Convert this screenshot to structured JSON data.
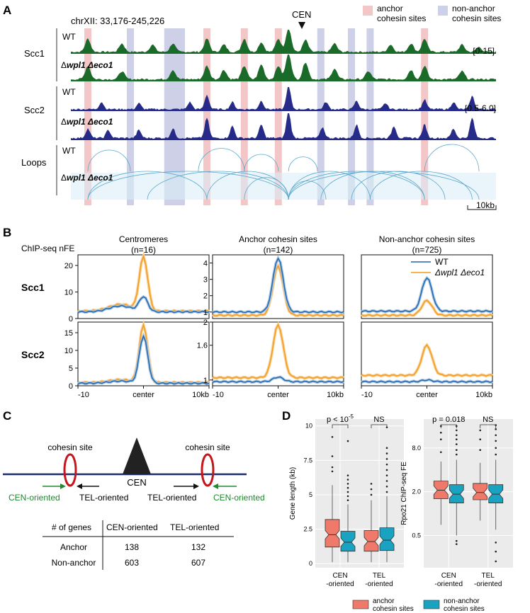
{
  "panel_letters": [
    "A",
    "B",
    "C",
    "D"
  ],
  "panel_a": {
    "locus": "chrXII: 33,176-245,226",
    "cen_label": "CEN",
    "legend_anchor": [
      "anchor",
      "cohesin sites"
    ],
    "legend_nonanchor": [
      "non-anchor",
      "cohesin sites"
    ],
    "colors": {
      "anchor_band": "#f3c6c8",
      "nonanchor_band": "#cdd0e6",
      "scc1": "#1a6b2a",
      "scc2": "#262b8a",
      "loops": "#5aa8cc",
      "loop_fill": "#dbeef6"
    },
    "groups": [
      {
        "name": "Scc1",
        "range": "[0-15]",
        "tracks": [
          {
            "label_prefix": "",
            "label": "WT"
          },
          {
            "label_prefix": "Δ",
            "label": "wpl1 Δeco1"
          }
        ]
      },
      {
        "name": "Scc2",
        "range": "[0.5-6.0]",
        "tracks": [
          {
            "label_prefix": "",
            "label": "WT"
          },
          {
            "label_prefix": "Δ",
            "label": "wpl1 Δeco1"
          }
        ]
      },
      {
        "name": "Loops",
        "range": "",
        "tracks": [
          {
            "label_prefix": "",
            "label": "WT"
          },
          {
            "label_prefix": "Δ",
            "label": "wpl1 Δeco1"
          }
        ]
      }
    ],
    "anchor_sites_kb": [
      10,
      80,
      102,
      122,
      208
    ],
    "nonanchor_sites_kb": [
      35,
      57,
      65,
      147,
      165,
      176
    ],
    "track_length_kb": 250,
    "cen_kb": 128,
    "scalebar": "10kb"
  },
  "chart_data": [
    {
      "type": "line",
      "panel": "B",
      "ylabel_header": "ChIP-seq nFE",
      "x_ticks": [
        "-10",
        "center",
        "10kb"
      ],
      "x_range_kb": [
        -10,
        10
      ],
      "legend": [
        "WT",
        "Δwpl1 Δeco1"
      ],
      "series_colors": {
        "WT": "#2166ac",
        "mutant": "#f39c1c"
      },
      "rows": [
        "Scc1",
        "Scc2"
      ],
      "columns": [
        {
          "title": "Centromeres",
          "n": "(n=16)"
        },
        {
          "title": "Anchor cohesin sites",
          "n": "(n=142)"
        },
        {
          "title": "Non-anchor cohesin sites",
          "n": "(n=725)"
        }
      ],
      "subplots": [
        {
          "row": "Scc1",
          "col": 0,
          "ylim": [
            0,
            24
          ],
          "yticks": [
            0,
            10,
            20
          ],
          "peak_wt": 8,
          "peak_mut": 23,
          "base_wt": 2.5,
          "base_mut": 2.8
        },
        {
          "row": "Scc1",
          "col": 1,
          "ylim": [
            0.6,
            4.5
          ],
          "yticks": [
            1.0,
            2.0,
            3.0,
            4.0
          ],
          "peak_wt": 4.3,
          "peak_mut": 3.8,
          "base_wt": 1.0,
          "base_mut": 0.8
        },
        {
          "row": "Scc1",
          "col": 2,
          "ylim": [
            0.6,
            4.5
          ],
          "yticks": [],
          "peak_wt": 3.1,
          "peak_mut": 1.7,
          "base_wt": 1.05,
          "base_mut": 0.8
        },
        {
          "row": "Scc2",
          "col": 0,
          "ylim": [
            0,
            18
          ],
          "yticks": [
            0,
            5,
            10,
            15
          ],
          "peak_wt": 14,
          "peak_mut": 17,
          "base_wt": 0.7,
          "base_mut": 0.9
        },
        {
          "row": "Scc2",
          "col": 1,
          "ylim": [
            0.9,
            2.0
          ],
          "yticks": [
            1.0,
            1.6,
            2.0
          ],
          "peak_wt": 1.05,
          "peak_mut": 1.95,
          "base_wt": 0.97,
          "base_mut": 1.04
        },
        {
          "row": "Scc2",
          "col": 2,
          "ylim": [
            0.9,
            2.0
          ],
          "yticks": [],
          "peak_wt": 1.0,
          "peak_mut": 1.6,
          "base_wt": 0.97,
          "base_mut": 1.08
        }
      ]
    },
    {
      "type": "box",
      "panel": "D",
      "title": "Gene length (kb)",
      "ylabel": "Gene length (kb)",
      "yticks": [
        0,
        2.5,
        5.0,
        7.5,
        10.0
      ],
      "ylim": [
        -0.3,
        10.5
      ],
      "groups": [
        "CEN\n-oriented",
        "TEL\n-oriented"
      ],
      "pvalues": [
        "p < 10",
        "NS"
      ],
      "pvalue_exponent": "-5",
      "boxes": [
        {
          "group": 0,
          "series": "anchor",
          "q1": 1.2,
          "median": 2.1,
          "q3": 3.2,
          "lo": 0.1,
          "hi": 5.7,
          "outliers": [
            6.7,
            7.0,
            7.8,
            9.2
          ]
        },
        {
          "group": 0,
          "series": "non-anchor",
          "q1": 0.9,
          "median": 1.55,
          "q3": 2.35,
          "lo": 0.1,
          "hi": 4.3,
          "outliers": [
            4.6,
            4.9,
            5.2,
            5.5,
            5.8,
            6.1,
            6.4,
            8.9
          ]
        },
        {
          "group": 1,
          "series": "anchor",
          "q1": 0.9,
          "median": 1.6,
          "q3": 2.4,
          "lo": 0.1,
          "hi": 4.6,
          "outliers": [
            5.0,
            5.4,
            5.8
          ]
        },
        {
          "group": 1,
          "series": "non-anchor",
          "q1": 0.95,
          "median": 1.7,
          "q3": 2.6,
          "lo": 0.1,
          "hi": 4.9,
          "outliers": [
            5.2,
            5.6,
            6.0,
            6.4,
            6.8,
            7.2,
            7.6,
            8.0,
            8.4,
            9.9
          ]
        }
      ]
    },
    {
      "type": "box",
      "panel": "D",
      "title": "Rpo21 ChIP-seq FE",
      "ylabel": "Rpo21 ChIP-seq FE",
      "yticks": [
        "0.5",
        "2.0",
        "8.0"
      ],
      "ytick_values": [
        0.5,
        2.0,
        8.0
      ],
      "scale": "log2",
      "ylim": [
        0.18,
        20
      ],
      "groups": [
        "CEN\n-oriented",
        "TEL\n-oriented"
      ],
      "pvalues": [
        "p = 0.018",
        "NS"
      ],
      "boxes": [
        {
          "group": 0,
          "series": "anchor",
          "q1": 1.6,
          "median": 2.1,
          "q3": 2.8,
          "lo": 0.7,
          "hi": 5.2,
          "outliers": [
            7.0,
            10.5,
            13.0,
            16.0
          ]
        },
        {
          "group": 0,
          "series": "non-anchor",
          "q1": 1.4,
          "median": 1.85,
          "q3": 2.5,
          "lo": 0.5,
          "hi": 5.5,
          "outliers": [
            0.42,
            0.38,
            6.5,
            7.5,
            9.0,
            10.5,
            12.0,
            14.0,
            16.0
          ]
        },
        {
          "group": 1,
          "series": "anchor",
          "q1": 1.55,
          "median": 1.95,
          "q3": 2.6,
          "lo": 0.8,
          "hi": 5.0,
          "outliers": [
            7.5,
            10.5,
            14.0
          ]
        },
        {
          "group": 1,
          "series": "non-anchor",
          "q1": 1.4,
          "median": 1.85,
          "q3": 2.5,
          "lo": 0.6,
          "hi": 5.5,
          "outliers": [
            0.4,
            0.3,
            0.22,
            6.5,
            8.0,
            10.0,
            12.0,
            14.5,
            16.5
          ]
        }
      ]
    }
  ],
  "panel_c": {
    "cohesin_site": "cohesin site",
    "cen": "CEN",
    "cen_oriented": "CEN-oriented",
    "tel_oriented": "TEL-oriented",
    "colors": {
      "cen_oriented": "#1f8a2e",
      "tel_oriented": "#111111",
      "ring": "#c4161c",
      "chromosome": "#1d2b6b"
    },
    "table": {
      "headers": [
        "# of genes",
        "CEN-oriented",
        "TEL-oriented"
      ],
      "rows": [
        {
          "label": "Anchor",
          "cen": "138",
          "tel": "132"
        },
        {
          "label": "Non-anchor",
          "cen": "603",
          "tel": "607"
        }
      ]
    }
  },
  "panel_d_legend": {
    "anchor": [
      "anchor",
      "cohesin sites"
    ],
    "nonanchor": [
      "non-anchor",
      "cohesin sites"
    ],
    "colors": {
      "anchor": "#f07a6a",
      "nonanchor": "#1aa3c0",
      "bg": "#ebebeb"
    }
  }
}
